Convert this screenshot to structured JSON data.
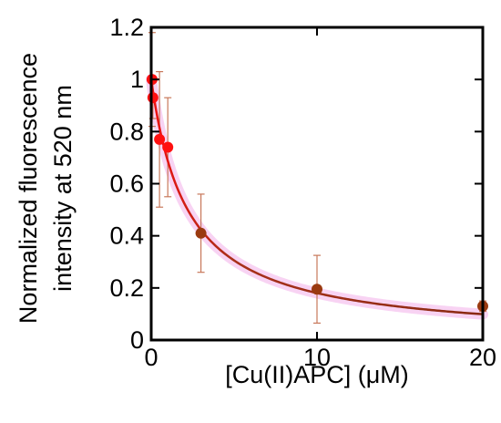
{
  "chart_data": {
    "type": "scatter",
    "title": "",
    "xlabel": "[Cu(II)APC] (μM)",
    "ylabel_lines": [
      "Normalized fluorescence",
      "intensity at 520 nm"
    ],
    "xlim": [
      0,
      20
    ],
    "ylim": [
      0,
      1.2
    ],
    "xticks": [
      0,
      10,
      20
    ],
    "yticks": [
      0,
      0.2,
      0.4,
      0.6,
      0.8,
      1,
      1.2
    ],
    "xtick_labels": [
      "0",
      "10",
      "20"
    ],
    "ytick_labels": [
      "0",
      "0.2",
      "0.4",
      "0.6",
      "0.8",
      "1",
      "1.2"
    ],
    "grid": false,
    "colors": {
      "low_points": "#ff1010",
      "high_points": "#9a3a10",
      "fit_curve_start": "#ee1111",
      "fit_curve_end": "#8a2a12",
      "error_bar": "#c8785a",
      "curve_glow": "#f6c8f0"
    },
    "series": [
      {
        "points": [
          {
            "x": 0.05,
            "y": 1.0,
            "err": 0.18
          },
          {
            "x": 0.1,
            "y": 0.93,
            "err": 0.08
          },
          {
            "x": 0.5,
            "y": 0.77,
            "err": 0.26
          },
          {
            "x": 1.0,
            "y": 0.74,
            "err": 0.19
          },
          {
            "x": 3.0,
            "y": 0.41,
            "err": 0.15
          },
          {
            "x": 10.0,
            "y": 0.195,
            "err": 0.13
          },
          {
            "x": 20.0,
            "y": 0.13,
            "err": 0.02
          }
        ]
      }
    ],
    "fit": {
      "model": "1/(1+x/K)",
      "K": 2.2
    }
  }
}
